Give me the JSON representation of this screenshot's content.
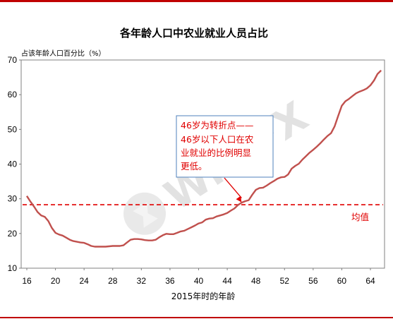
{
  "chart_data": {
    "type": "line",
    "title": "各年龄人口中农业就业人员占比",
    "ylabel": "占该年龄人口百分比（%）",
    "xlabel": "2015年时的年龄",
    "xlim": [
      16,
      66
    ],
    "ylim": [
      10,
      70
    ],
    "xticks": [
      16,
      20,
      24,
      28,
      32,
      36,
      40,
      44,
      48,
      52,
      56,
      60,
      64
    ],
    "yticks": [
      10,
      20,
      30,
      40,
      50,
      60,
      70
    ],
    "grid": false,
    "series": [
      {
        "color": "#c0504d",
        "x": [
          16,
          16.5,
          17,
          17.5,
          18,
          18.5,
          19,
          19.5,
          20,
          20.5,
          21,
          21.5,
          22,
          22.5,
          23,
          23.5,
          24,
          24.5,
          25,
          25.5,
          26,
          26.5,
          27,
          27.5,
          28,
          28.5,
          29,
          29.5,
          30,
          30.5,
          31,
          31.5,
          32,
          32.5,
          33,
          33.5,
          34,
          34.5,
          35,
          35.5,
          36,
          36.5,
          37,
          37.5,
          38,
          38.5,
          39,
          39.5,
          40,
          40.5,
          41,
          41.5,
          42,
          42.5,
          43,
          43.5,
          44,
          44.5,
          45,
          45.5,
          46,
          46.5,
          47,
          47.5,
          48,
          48.5,
          49,
          49.5,
          50,
          50.5,
          51,
          51.5,
          52,
          52.5,
          53,
          53.5,
          54,
          54.5,
          55,
          55.5,
          56,
          56.5,
          57,
          57.5,
          58,
          58.5,
          59,
          59.5,
          60,
          60.5,
          61,
          61.5,
          62,
          62.5,
          63,
          63.5,
          64,
          64.5,
          65,
          65.5
        ],
        "y": [
          30.8,
          29.2,
          27.8,
          26.2,
          25.2,
          24.8,
          23.6,
          21.6,
          20.2,
          19.7,
          19.4,
          18.8,
          18.2,
          17.8,
          17.6,
          17.4,
          17.3,
          16.9,
          16.4,
          16.2,
          16.2,
          16.2,
          16.2,
          16.3,
          16.4,
          16.4,
          16.4,
          16.6,
          17.4,
          18.2,
          18.4,
          18.4,
          18.3,
          18.1,
          18.0,
          18.0,
          18.2,
          18.9,
          19.5,
          19.9,
          19.8,
          19.8,
          20.2,
          20.6,
          20.8,
          21.3,
          21.8,
          22.3,
          22.9,
          23.2,
          24.0,
          24.3,
          24.4,
          24.9,
          25.2,
          25.5,
          25.9,
          26.6,
          27.2,
          28.2,
          28.9,
          29.3,
          29.6,
          31.2,
          32.6,
          33.1,
          33.2,
          33.8,
          34.5,
          35.1,
          35.8,
          36.2,
          36.3,
          37.0,
          38.7,
          39.5,
          40.1,
          41.3,
          42.3,
          43.3,
          44.1,
          45.0,
          46.0,
          47.1,
          48.1,
          48.9,
          50.9,
          53.9,
          56.8,
          58.1,
          58.8,
          59.6,
          60.4,
          60.9,
          61.3,
          61.8,
          62.7,
          64.1,
          66.0,
          67.0
        ]
      }
    ],
    "reference_lines": [
      {
        "y": 28.3,
        "label": "均值",
        "color": "#e00000",
        "style": "dashed"
      }
    ],
    "annotation": {
      "lines": [
        "46岁为转折点——",
        "46岁以下人口在农",
        "业就业的比例明显",
        "更低。"
      ],
      "arrow_to": {
        "x": 46,
        "y": 29.0
      }
    }
  },
  "watermark": "WikiFX"
}
